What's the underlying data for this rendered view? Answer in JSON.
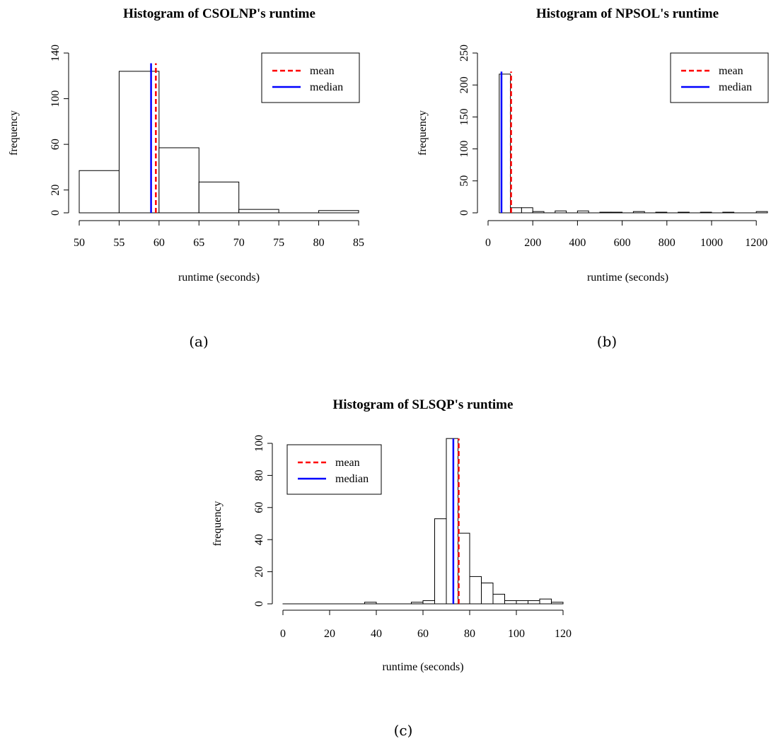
{
  "figure": {
    "captions": [
      "(a)",
      "(b)",
      "(c)"
    ]
  },
  "chart_data": [
    {
      "type": "bar",
      "title": "Histogram of CSOLNP's runtime",
      "xlabel": "runtime (seconds)",
      "ylabel": "frequency",
      "bins": [
        [
          50,
          55
        ],
        [
          55,
          60
        ],
        [
          60,
          65
        ],
        [
          65,
          70
        ],
        [
          70,
          75
        ],
        [
          75,
          80
        ],
        [
          80,
          85
        ]
      ],
      "values": [
        37,
        124,
        57,
        27,
        3,
        0,
        2
      ],
      "xlim": [
        50,
        85
      ],
      "ylim": [
        0,
        140
      ],
      "xticks": [
        50,
        55,
        60,
        65,
        70,
        75,
        80,
        85
      ],
      "yticks": [
        0,
        20,
        60,
        100,
        140
      ],
      "mean": 59.6,
      "median": 59.0,
      "lines_top": 131,
      "legend": {
        "position": "top-right",
        "entries": [
          {
            "label": "mean",
            "style": "dashed",
            "color": "#ff0000"
          },
          {
            "label": "median",
            "style": "solid",
            "color": "#0000ff"
          }
        ]
      }
    },
    {
      "type": "bar",
      "title": "Histogram of NPSOL's runtime",
      "xlabel": "runtime (seconds)",
      "ylabel": "frequency",
      "bins": [
        [
          50,
          100
        ],
        [
          100,
          150
        ],
        [
          150,
          200
        ],
        [
          200,
          250
        ],
        [
          250,
          300
        ],
        [
          300,
          350
        ],
        [
          350,
          400
        ],
        [
          400,
          450
        ],
        [
          450,
          500
        ],
        [
          500,
          550
        ],
        [
          550,
          600
        ],
        [
          600,
          650
        ],
        [
          650,
          700
        ],
        [
          700,
          750
        ],
        [
          750,
          800
        ],
        [
          800,
          850
        ],
        [
          850,
          900
        ],
        [
          900,
          950
        ],
        [
          950,
          1000
        ],
        [
          1000,
          1050
        ],
        [
          1050,
          1100
        ],
        [
          1100,
          1150
        ],
        [
          1150,
          1200
        ],
        [
          1200,
          1250
        ]
      ],
      "values": [
        217,
        8,
        8,
        2,
        0,
        3,
        0,
        3,
        0,
        1,
        1,
        0,
        2,
        0,
        1,
        0,
        1,
        0,
        1,
        0,
        1,
        0,
        0,
        2
      ],
      "xlim": [
        0,
        1250
      ],
      "ylim": [
        0,
        250
      ],
      "xticks": [
        0,
        200,
        400,
        600,
        800,
        1000,
        1200
      ],
      "yticks": [
        0,
        50,
        100,
        150,
        200,
        250
      ],
      "mean": 103,
      "median": 60,
      "lines_top": 221,
      "legend": {
        "position": "top-right",
        "entries": [
          {
            "label": "mean",
            "style": "dashed",
            "color": "#ff0000"
          },
          {
            "label": "median",
            "style": "solid",
            "color": "#0000ff"
          }
        ]
      }
    },
    {
      "type": "bar",
      "title": "Histogram of SLSQP's runtime",
      "xlabel": "runtime (seconds)",
      "ylabel": "frequency",
      "bins": [
        [
          0,
          5
        ],
        [
          5,
          10
        ],
        [
          10,
          15
        ],
        [
          15,
          20
        ],
        [
          20,
          25
        ],
        [
          25,
          30
        ],
        [
          30,
          35
        ],
        [
          35,
          40
        ],
        [
          40,
          45
        ],
        [
          45,
          50
        ],
        [
          50,
          55
        ],
        [
          55,
          60
        ],
        [
          60,
          65
        ],
        [
          65,
          70
        ],
        [
          70,
          75
        ],
        [
          75,
          80
        ],
        [
          80,
          85
        ],
        [
          85,
          90
        ],
        [
          90,
          95
        ],
        [
          95,
          100
        ],
        [
          100,
          105
        ],
        [
          105,
          110
        ],
        [
          110,
          115
        ],
        [
          115,
          120
        ]
      ],
      "values": [
        0,
        0,
        0,
        0,
        0,
        0,
        0,
        1,
        0,
        0,
        0,
        1,
        2,
        53,
        103,
        44,
        17,
        13,
        6,
        2,
        2,
        2,
        3,
        1
      ],
      "xlim": [
        0,
        120
      ],
      "ylim": [
        0,
        100
      ],
      "xticks": [
        0,
        20,
        40,
        60,
        80,
        100,
        120
      ],
      "yticks": [
        0,
        20,
        40,
        60,
        80,
        100
      ],
      "mean": 75.3,
      "median": 73,
      "lines_top": 103,
      "legend": {
        "position": "top-left",
        "entries": [
          {
            "label": "mean",
            "style": "dashed",
            "color": "#ff0000"
          },
          {
            "label": "median",
            "style": "solid",
            "color": "#0000ff"
          }
        ]
      }
    }
  ]
}
